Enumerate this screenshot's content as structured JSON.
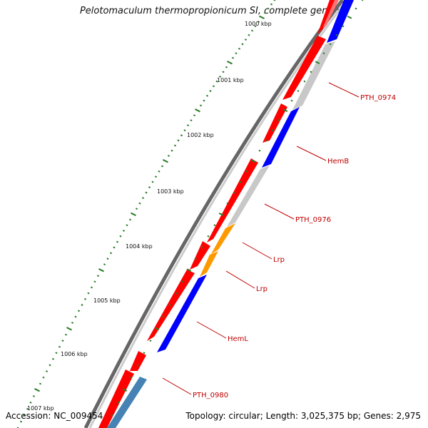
{
  "header": {
    "title": "Pelotomaculum thermopropionicum SI, complete genome"
  },
  "footer": {
    "accession": "Accession: NC_009454",
    "summary": "Topology: circular; Length: 3,025,375 bp; Genes: 2,975"
  },
  "scale_ticks": [
    {
      "label": "1000 kbp"
    },
    {
      "label": "1001 kbp"
    },
    {
      "label": "1002 kbp"
    },
    {
      "label": "1003 kbp"
    },
    {
      "label": "1004 kbp"
    },
    {
      "label": "1005 kbp"
    },
    {
      "label": "1006 kbp"
    },
    {
      "label": "1007 kbp"
    }
  ],
  "gene_labels": [
    {
      "label": "PTH_0974"
    },
    {
      "label": "HemB"
    },
    {
      "label": "PTH_0976"
    },
    {
      "label": "Lrp"
    },
    {
      "label": "Lrp"
    },
    {
      "label": "HemL"
    },
    {
      "label": "PTH_0980"
    }
  ],
  "colors": {
    "forward_cds": "#ff0000",
    "reverse_cds_blue": "#0000ff",
    "reverse_cds_gray": "#bbbbbb",
    "reverse_cds_orange": "#ff9900",
    "reverse_cds_steel": "#4682b4",
    "backbone": "#666666",
    "tick": "#2a7d2a",
    "label_text": "#c00000"
  }
}
